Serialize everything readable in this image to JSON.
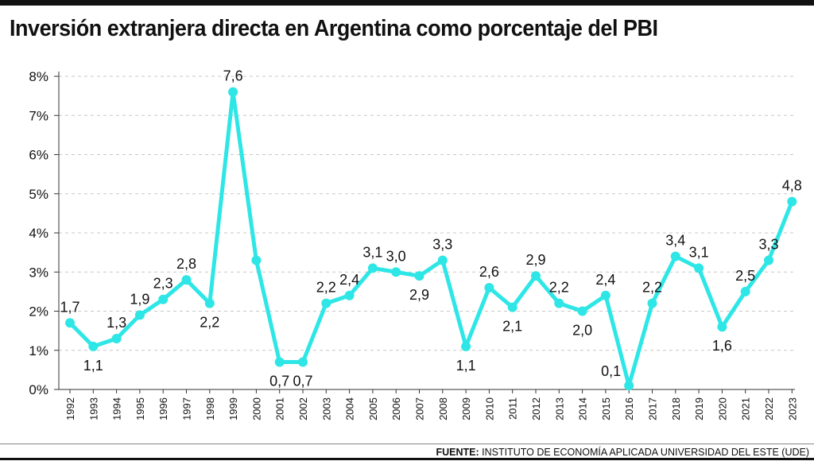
{
  "title": "Inversión extranjera directa en Argentina como porcentaje del PBI",
  "source": {
    "label": "FUENTE:",
    "text": "INSTITUTO DE ECONOMÍA APLICADA UNIVERSIDAD DEL ESTE (UDE)"
  },
  "colors": {
    "line": "#2ee6e6",
    "text": "#111111",
    "grid": "#c8c8c8"
  },
  "chart_data": {
    "type": "line",
    "title": "Inversión extranjera directa en Argentina como porcentaje del PBI",
    "xlabel": "",
    "ylabel": "",
    "ylim": [
      0,
      8
    ],
    "grid": true,
    "y_ticks": [
      0,
      1,
      2,
      3,
      4,
      5,
      6,
      7,
      8
    ],
    "y_tick_labels": [
      "0%",
      "1%",
      "2%",
      "3%",
      "4%",
      "5%",
      "6%",
      "7%",
      "8%"
    ],
    "categories": [
      "1992",
      "1993",
      "1994",
      "1995",
      "1996",
      "1997",
      "1998",
      "1999",
      "2000",
      "2001",
      "2002",
      "2003",
      "2004",
      "2005",
      "2006",
      "2007",
      "2008",
      "2009",
      "2010",
      "2011",
      "2012",
      "2013",
      "2014",
      "2015",
      "2016",
      "2017",
      "2018",
      "2019",
      "2020",
      "2021",
      "2022",
      "2023"
    ],
    "values": [
      1.7,
      1.1,
      1.3,
      1.9,
      2.3,
      2.8,
      2.2,
      7.6,
      3.3,
      0.7,
      0.7,
      2.2,
      2.4,
      3.1,
      3.0,
      2.9,
      3.3,
      1.1,
      2.6,
      2.1,
      2.9,
      2.2,
      2.0,
      2.4,
      0.1,
      2.2,
      3.4,
      3.1,
      1.6,
      2.5,
      3.3,
      4.8
    ],
    "data_labels": [
      "1,7",
      "1,1",
      "1,3",
      "1,9",
      "2,3",
      "2,8",
      "2,2",
      "7,6",
      "",
      "0,7",
      "0,7",
      "2,2",
      "2,4",
      "3,1",
      "3,0",
      "2,9",
      "3,3",
      "1,1",
      "2,6",
      "2,1",
      "2,9",
      "2,2",
      "2,0",
      "2,4",
      "0,1",
      "2,2",
      "3,4",
      "3,1",
      "1,6",
      "2,5",
      "3,3",
      "4,8"
    ]
  }
}
